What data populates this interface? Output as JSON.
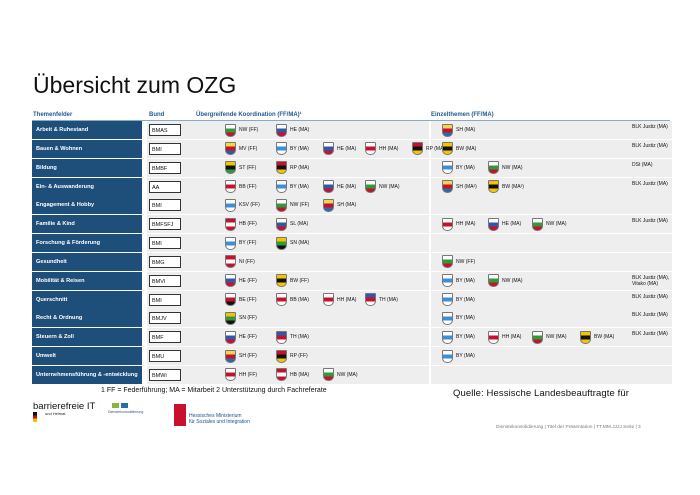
{
  "title": "Übersicht zum OZG",
  "headers": {
    "themenfelder": "Themenfelder",
    "bund": "Bund",
    "koordination": "Übergreifende Koordination (FF/MA)¹",
    "einzelthemen": "Einzelthemen (FF/MA)"
  },
  "rows": [
    {
      "topic": "Arbeit & Ruhestand",
      "ministry": "BMAS",
      "coord": [
        {
          "crest": "nrw",
          "label": "NW (FF)"
        },
        {
          "crest": "hessen",
          "label": "HE (MA)"
        }
      ],
      "single": [
        {
          "crest": "sh",
          "label": "SH (MA)"
        }
      ],
      "note": "BLK Justiz (MA)"
    },
    {
      "topic": "Bauen & Wohnen",
      "ministry": "BMI",
      "coord": [
        {
          "crest": "mv",
          "label": "MV (FF)"
        },
        {
          "crest": "bayern",
          "label": "BY (MA)"
        },
        {
          "crest": "hessen",
          "label": "HE (MA)"
        },
        {
          "crest": "hamburg",
          "label": "HH (MA)"
        },
        {
          "crest": "rp",
          "label": "RP (MA)"
        }
      ],
      "single": [
        {
          "crest": "bw",
          "label": "BW (MA)"
        }
      ],
      "note": "BLK Justiz (MA)"
    },
    {
      "topic": "Bildung",
      "ministry": "BMBF",
      "coord": [
        {
          "crest": "st",
          "label": "ST (FF)"
        },
        {
          "crest": "rp",
          "label": "RP (MA)"
        }
      ],
      "single": [
        {
          "crest": "bayern",
          "label": "BY (MA)"
        },
        {
          "crest": "nrw",
          "label": "NW (MA)"
        }
      ],
      "note": "DSt (MA)"
    },
    {
      "topic": "Ein- & Auswanderung",
      "ministry": "AA",
      "coord": [
        {
          "crest": "bb",
          "label": "BB (FF)"
        },
        {
          "crest": "bayern",
          "label": "BY (MA)"
        },
        {
          "crest": "hessen",
          "label": "HE (MA)"
        },
        {
          "crest": "nrw",
          "label": "NW (MA)"
        }
      ],
      "single": [
        {
          "crest": "sh",
          "label": "SH (MA²)"
        },
        {
          "crest": "bw",
          "label": "BW (MA²)"
        }
      ],
      "note": "BLK Justiz (MA)"
    },
    {
      "topic": "Engagement & Hobby",
      "ministry": "BMI",
      "coord": [
        {
          "crest": "bayern",
          "label": "KSV (FF)"
        },
        {
          "crest": "nrw",
          "label": "NW (FF)"
        },
        {
          "crest": "sh",
          "label": "SH (MA)"
        }
      ],
      "single": [],
      "note": ""
    },
    {
      "topic": "Familie & Kind",
      "ministry": "BMFSFJ",
      "coord": [
        {
          "crest": "hb",
          "label": "HB (FF)"
        },
        {
          "crest": "sl",
          "label": "SL (MA)"
        }
      ],
      "single": [
        {
          "crest": "hamburg",
          "label": "HH (MA)"
        },
        {
          "crest": "hessen",
          "label": "HE (MA)"
        },
        {
          "crest": "nrw",
          "label": "NW (MA)"
        }
      ],
      "note": "BLK Justiz (MA)"
    },
    {
      "topic": "Forschung & Förderung",
      "ministry": "BMI",
      "coord": [
        {
          "crest": "bayern",
          "label": "BY (FF)"
        },
        {
          "crest": "sn",
          "label": "SN (MA)"
        }
      ],
      "single": [],
      "note": ""
    },
    {
      "topic": "Gesundheit",
      "ministry": "BMG",
      "coord": [
        {
          "crest": "ni",
          "label": "NI (FF)"
        }
      ],
      "single": [
        {
          "crest": "nrw",
          "label": "NW (FF)"
        }
      ],
      "note": ""
    },
    {
      "topic": "Mobilität & Reisen",
      "ministry": "BMVI",
      "coord": [
        {
          "crest": "hessen",
          "label": "HE (FF)"
        },
        {
          "crest": "bw",
          "label": "BW (FF)"
        }
      ],
      "single": [
        {
          "crest": "bayern",
          "label": "BY (MA)"
        },
        {
          "crest": "nrw",
          "label": "NW (MA)"
        }
      ],
      "note": "BLK Justiz (MA),\nVitako (MA)"
    },
    {
      "topic": "Querschnitt",
      "ministry": "BMI",
      "coord": [
        {
          "crest": "berlin",
          "label": "BE (FF)"
        },
        {
          "crest": "bb",
          "label": "BB (MA)"
        },
        {
          "crest": "hamburg",
          "label": "HH (MA)"
        },
        {
          "crest": "th",
          "label": "TH (MA)"
        }
      ],
      "single": [
        {
          "crest": "bayern",
          "label": "BY (MA)"
        }
      ],
      "note": "BLK Justiz (MA)"
    },
    {
      "topic": "Recht & Ordnung",
      "ministry": "BMJV",
      "coord": [
        {
          "crest": "sn",
          "label": "SN (FF)"
        }
      ],
      "single": [
        {
          "crest": "bayern",
          "label": "BY (MA)"
        }
      ],
      "note": "BLK Justiz (MA)"
    },
    {
      "topic": "Steuern & Zoll",
      "ministry": "BMF",
      "coord": [
        {
          "crest": "hessen",
          "label": "HE (FF)"
        },
        {
          "crest": "th",
          "label": "TH (MA)"
        }
      ],
      "single": [
        {
          "crest": "bayern",
          "label": "BY (MA)"
        },
        {
          "crest": "hamburg",
          "label": "HH (MA)"
        },
        {
          "crest": "nrw",
          "label": "NW (MA)"
        },
        {
          "crest": "bw",
          "label": "BW (MA)"
        }
      ],
      "note": "BLK Justiz (MA)"
    },
    {
      "topic": "Umwelt",
      "ministry": "BMU",
      "coord": [
        {
          "crest": "sh",
          "label": "SH (FF)"
        },
        {
          "crest": "rp",
          "label": "RP (FF)"
        }
      ],
      "single": [
        {
          "crest": "bayern",
          "label": "BY (MA)"
        }
      ],
      "note": ""
    },
    {
      "topic": "Unternehmensführung & -entwicklung",
      "ministry": "BMWi",
      "coord": [
        {
          "crest": "hamburg",
          "label": "HH (FF)"
        },
        {
          "crest": "hb",
          "label": "HB (MA)"
        },
        {
          "crest": "nrw",
          "label": "NW (MA)"
        }
      ],
      "single": [],
      "note": ""
    }
  ],
  "footnote": "1 FF = Federführung; MA = Mitarbeit      2 Unterstützung durch Fachreferate",
  "source": "Quelle: Hessische Landesbeauftragte für",
  "barrierefrei": "barrierefreie IT",
  "bmi_sub_line1": "und Heimat",
  "dk_label": "Dienstekonsolidierung",
  "hessen_label": "Hessisches Ministerium\nfür Soziales und Integration",
  "slide_footer": "Dienstekonsolidierung | Titel der Präsentation | TT.MM.JJJJ     Seite | 3",
  "crest_colors": {
    "nrw": [
      "#ffffff",
      "#2e9b3a",
      "#c8102e"
    ],
    "hessen": [
      "#ffffff",
      "#2d5aa8",
      "#c8102e"
    ],
    "bayern": [
      "#ffffff",
      "#3b8fd9",
      "#ffffff"
    ],
    "sh": [
      "#f2d64b",
      "#c8102e",
      "#2a6aa8"
    ],
    "mv": [
      "#f5d93a",
      "#c8102e",
      "#2d5aa8"
    ],
    "hamburg": [
      "#ffffff",
      "#c8102e",
      "#ffffff"
    ],
    "rp": [
      "#c8102e",
      "#111111",
      "#f2c500"
    ],
    "bw": [
      "#f2c500",
      "#111111",
      "#f2c500"
    ],
    "st": [
      "#f2c500",
      "#111111",
      "#2e9b3a"
    ],
    "bb": [
      "#ffffff",
      "#c8102e",
      "#ffffff"
    ],
    "hb": [
      "#c8102e",
      "#ffffff",
      "#c8102e"
    ],
    "sl": [
      "#ffffff",
      "#2d5aa8",
      "#c8102e"
    ],
    "sn": [
      "#f2c500",
      "#2e9b3a",
      "#111111"
    ],
    "ni": [
      "#c8102e",
      "#ffffff",
      "#c8102e"
    ],
    "berlin": [
      "#ffffff",
      "#c8102e",
      "#111111"
    ],
    "th": [
      "#2d5aa8",
      "#c8102e",
      "#ffffff"
    ]
  }
}
